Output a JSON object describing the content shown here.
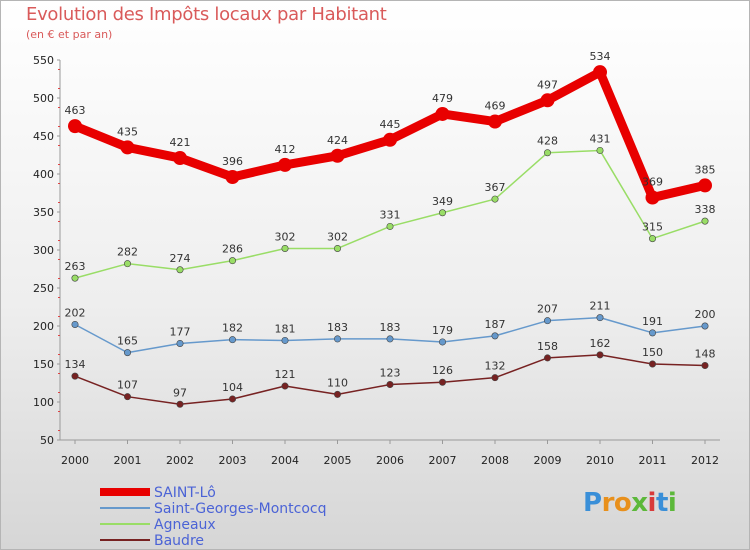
{
  "title": "Evolution des Impôts locaux par Habitant",
  "subtitle": "(en € et par an)",
  "logo": {
    "text": "Proxiti",
    "letters": [
      "P",
      "r",
      "o",
      "x",
      "i",
      "t",
      "i"
    ],
    "colors": [
      "#3a8fd8",
      "#e8901c",
      "#e8901c",
      "#5cb83a",
      "#d83a3a",
      "#3a8fd8",
      "#5cb83a"
    ]
  },
  "chart_data": {
    "type": "line",
    "x": [
      "2000",
      "2001",
      "2002",
      "2003",
      "2004",
      "2005",
      "2006",
      "2007",
      "2008",
      "2009",
      "2010",
      "2011",
      "2012"
    ],
    "ylim": [
      50,
      550
    ],
    "yticks": [
      50,
      100,
      150,
      200,
      250,
      300,
      350,
      400,
      450,
      500,
      550
    ],
    "grid": false,
    "legend_position": "bottom-left",
    "series": [
      {
        "name": "SAINT-Lô",
        "color": "#e80000",
        "values": [
          463,
          435,
          421,
          396,
          412,
          424,
          445,
          479,
          469,
          497,
          534,
          369,
          385
        ]
      },
      {
        "name": "Saint-Georges-Montcocq",
        "color": "#6699cc",
        "values": [
          202,
          165,
          177,
          182,
          181,
          183,
          183,
          179,
          187,
          207,
          211,
          191,
          200
        ]
      },
      {
        "name": "Agneaux",
        "color": "#99dd66",
        "values": [
          263,
          282,
          274,
          286,
          302,
          302,
          331,
          349,
          367,
          428,
          431,
          315,
          338
        ]
      },
      {
        "name": "Baudre",
        "color": "#772222",
        "values": [
          134,
          107,
          97,
          104,
          121,
          110,
          123,
          126,
          132,
          158,
          162,
          150,
          148
        ]
      }
    ]
  }
}
